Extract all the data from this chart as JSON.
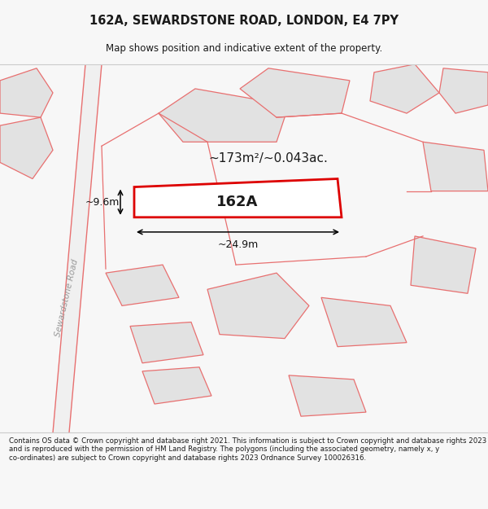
{
  "title": "162A, SEWARDSTONE ROAD, LONDON, E4 7PY",
  "subtitle": "Map shows position and indicative extent of the property.",
  "footer": "Contains OS data © Crown copyright and database right 2021. This information is subject to Crown copyright and database rights 2023 and is reproduced with the permission of HM Land Registry. The polygons (including the associated geometry, namely x, y co-ordinates) are subject to Crown copyright and database rights 2023 Ordnance Survey 100026316.",
  "bg_color": "#f7f7f7",
  "map_bg": "#ffffff",
  "building_fill": "#e2e2e2",
  "road_fill": "#f0f0f0",
  "line_color": "#e87070",
  "highlight_color": "#dd0000",
  "text_color": "#1a1a1a",
  "dim_color": "#111111",
  "area_label": "~173m²/~0.043ac.",
  "plot_label": "162A",
  "dim_width": "~24.9m",
  "dim_height": "~9.6m",
  "road_label": "Sewardstone Road",
  "title_fontsize": 10.5,
  "subtitle_fontsize": 8.5,
  "footer_fontsize": 6.2,
  "label_fontsize": 13,
  "area_fontsize": 11,
  "dim_fontsize": 9
}
